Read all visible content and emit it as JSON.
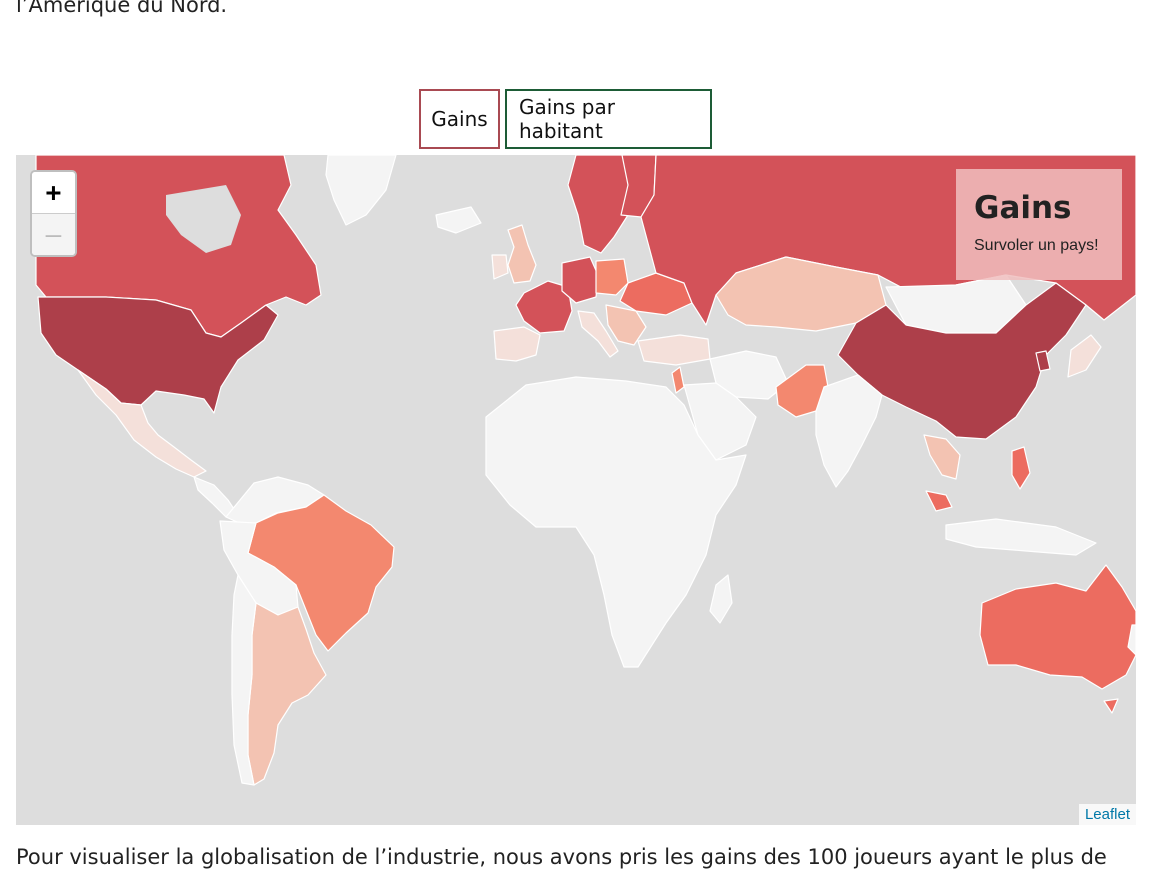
{
  "text": {
    "intro": "l’Amérique du Nord.",
    "outro": "Pour visualiser la globalisation de l’industrie, nous avons pris les gains des 100 joueurs ayant le plus de"
  },
  "buttons": {
    "gains": "Gains",
    "per_capita": "Gains par habitant"
  },
  "map": {
    "zoom_in": "+",
    "zoom_out": "—",
    "info_title": "Gains",
    "info_hint": "Survoler un pays!",
    "attribution": "Leaflet",
    "colors": {
      "water": "#dddddd",
      "no_data": "#f4f4f4",
      "low": "#f3c3b2",
      "low_mid": "#f4e0da",
      "mid": "#f3886f",
      "mid_high": "#ec6c60",
      "high": "#d35259",
      "top": "#ad3f4a",
      "border": "#ffffff"
    }
  }
}
